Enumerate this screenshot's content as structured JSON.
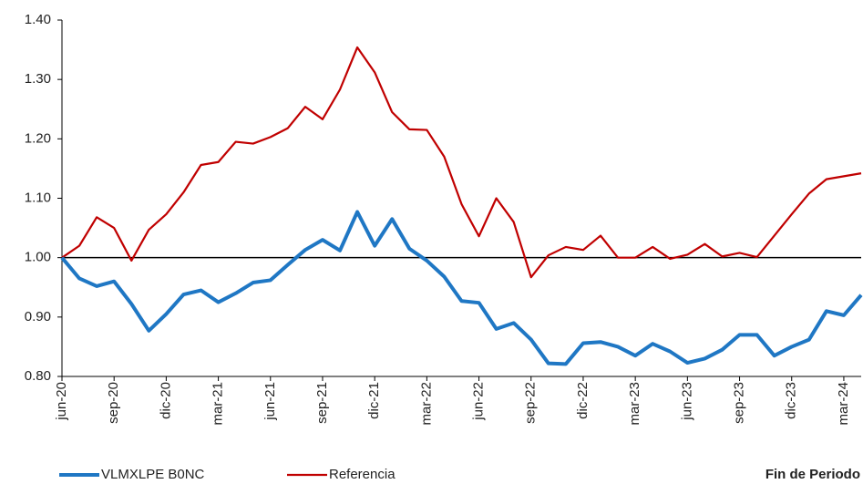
{
  "chart_data": {
    "type": "line",
    "xlabel": "Fin de Periodo",
    "categories": [
      "jun-20",
      null,
      null,
      "sep-20",
      null,
      null,
      "dic-20",
      null,
      null,
      "mar-21",
      null,
      null,
      "jun-21",
      null,
      null,
      "sep-21",
      null,
      null,
      "dic-21",
      null,
      null,
      "mar-22",
      null,
      null,
      "jun-22",
      null,
      null,
      "sep-22",
      null,
      null,
      "dic-22",
      null,
      null,
      "mar-23",
      null,
      null,
      "jun-23",
      null,
      null,
      "sep-23",
      null,
      null,
      "dic-23",
      null,
      null,
      "mar-24",
      null
    ],
    "series": [
      {
        "name": "VLMXLPE B0NC",
        "color": "#1f77c4",
        "values": [
          1.0,
          0.965,
          0.952,
          0.96,
          0.922,
          0.877,
          0.905,
          0.938,
          0.945,
          0.925,
          0.94,
          0.958,
          0.962,
          0.988,
          1.013,
          1.03,
          1.012,
          1.077,
          1.02,
          1.065,
          1.015,
          0.995,
          0.968,
          0.927,
          0.924,
          0.88,
          0.89,
          0.862,
          0.822,
          0.821,
          0.856,
          0.858,
          0.85,
          0.835,
          0.855,
          0.842,
          0.823,
          0.83,
          0.845,
          0.87,
          0.87,
          0.835,
          0.85,
          0.862,
          0.91,
          0.903,
          0.937
        ]
      },
      {
        "name": "Referencia",
        "color": "#c00000",
        "values": [
          1.0,
          1.02,
          1.068,
          1.05,
          0.995,
          1.047,
          1.073,
          1.11,
          1.156,
          1.161,
          1.195,
          1.192,
          1.203,
          1.218,
          1.254,
          1.233,
          1.283,
          1.354,
          1.312,
          1.245,
          1.216,
          1.215,
          1.17,
          1.09,
          1.036,
          1.1,
          1.06,
          0.967,
          1.004,
          1.018,
          1.013,
          1.037,
          1.0,
          1.0,
          1.018,
          0.998,
          1.005,
          1.023,
          1.002,
          1.008,
          1.001,
          1.037,
          1.073,
          1.108,
          1.132,
          1.137,
          1.142
        ]
      }
    ],
    "ylim": [
      0.8,
      1.4
    ],
    "yticks": [
      {
        "value": 0.8,
        "label": "0.80"
      },
      {
        "value": 0.9,
        "label": "0.90"
      },
      {
        "value": 1.0,
        "label": "1.00"
      },
      {
        "value": 1.1,
        "label": "1.10"
      },
      {
        "value": 1.2,
        "label": "1.20"
      },
      {
        "value": 1.3,
        "label": "1.30"
      },
      {
        "value": 1.4,
        "label": "1.40"
      }
    ],
    "reference_line": 1.0,
    "legend": "bottom"
  }
}
